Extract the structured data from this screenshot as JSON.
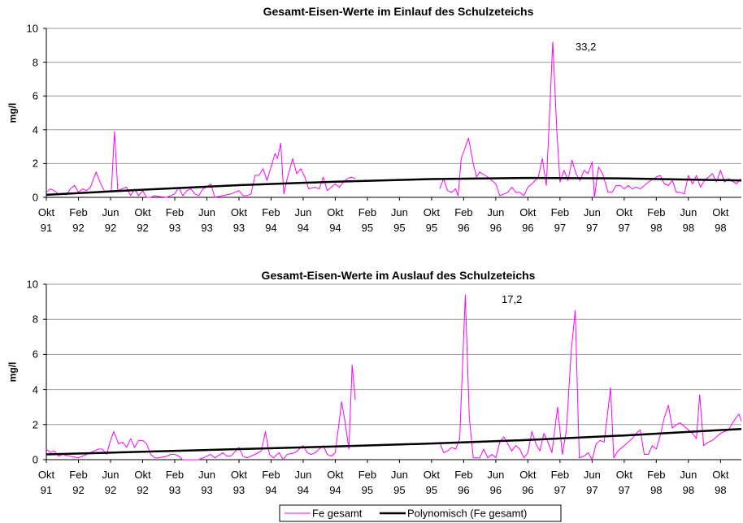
{
  "chart_data": [
    {
      "type": "line",
      "title": "Gesamt-Eisen-Werte im Einlauf des Schulzeteichs",
      "y_label": "mg/l",
      "annotation": "33,2",
      "xlim": [
        0,
        86.6
      ],
      "ylim": [
        0,
        10
      ],
      "yticks": [
        0,
        2,
        4,
        6,
        8,
        10
      ],
      "grid": true,
      "xticks": [
        {
          "value": 0,
          "label": "Okt 91"
        },
        {
          "value": 4,
          "label": "Feb 92"
        },
        {
          "value": 8,
          "label": "Jun 92"
        },
        {
          "value": 12,
          "label": "Okt 92"
        },
        {
          "value": 16,
          "label": "Feb 93"
        },
        {
          "value": 20,
          "label": "Jun 93"
        },
        {
          "value": 24,
          "label": "Okt 93"
        },
        {
          "value": 28,
          "label": "Feb 94"
        },
        {
          "value": 32,
          "label": "Jun 94"
        },
        {
          "value": 36,
          "label": "Okt 94"
        },
        {
          "value": 40,
          "label": "Feb 95"
        },
        {
          "value": 44,
          "label": "Jun 95"
        },
        {
          "value": 48,
          "label": "Okt 95"
        },
        {
          "value": 52,
          "label": "Feb 96"
        },
        {
          "value": 56,
          "label": "Jun 96"
        },
        {
          "value": 60,
          "label": "Okt 96"
        },
        {
          "value": 64,
          "label": "Feb 97"
        },
        {
          "value": 68,
          "label": "Jun 97"
        },
        {
          "value": 72,
          "label": "Okt 97"
        },
        {
          "value": 76,
          "label": "Feb 98"
        },
        {
          "value": 80,
          "label": "Jun 98"
        },
        {
          "value": 84,
          "label": "Okt 98"
        }
      ],
      "series": [
        {
          "name": "Fe gesamt",
          "color": "#ff00ff",
          "width": 1,
          "x": [
            0,
            0.5,
            1,
            1.5,
            2,
            2.5,
            3,
            3.5,
            4,
            4.5,
            5,
            5.5,
            6.2,
            6.7,
            7.2,
            7.7,
            8.1,
            8.5,
            8.9,
            9.4,
            10,
            10.5,
            11,
            11.5,
            12,
            12.5,
            13,
            13.5,
            14,
            15,
            15.5,
            16,
            16.5,
            17,
            17.5,
            18,
            18.5,
            19,
            19.5,
            20,
            20.5,
            21,
            22,
            23,
            23.5,
            24,
            24.5,
            25,
            25.5,
            26,
            26.5,
            27,
            27.5,
            28.5,
            28.8,
            29.2,
            29.6,
            30,
            30.7,
            31.2,
            31.7,
            32.2,
            32.7,
            33.5,
            34,
            34.5,
            35,
            35.5,
            36,
            36.5,
            37,
            37.5,
            38,
            38.5,
            44,
            49,
            49.5,
            50,
            50.5,
            51,
            51.3,
            51.7,
            52.6,
            53.2,
            53.6,
            54,
            55,
            56,
            56.5,
            57.5,
            58,
            58.5,
            59,
            59.5,
            60,
            60.5,
            61.3,
            61.8,
            62.3,
            63.1,
            63.6,
            64,
            64.5,
            65,
            65.5,
            66,
            66.5,
            67,
            67.5,
            68,
            68.3,
            68.8,
            69.3,
            70,
            70.5,
            71,
            71.5,
            72,
            72.5,
            73,
            73.5,
            74,
            75,
            76,
            76.5,
            77,
            77.5,
            78,
            78.5,
            79,
            79.5,
            80,
            80.5,
            81,
            81.5,
            82,
            83,
            83.5,
            84,
            84.5,
            85,
            86,
            86.5
          ],
          "values": [
            0.3,
            0.5,
            0.4,
            0.2,
            0.2,
            0.15,
            0.5,
            0.7,
            0.3,
            0.5,
            0.4,
            0.6,
            1.5,
            0.9,
            0.4,
            0.3,
            0.4,
            3.9,
            0.4,
            0.5,
            0.6,
            0.1,
            0.5,
            0.1,
            0.4,
            0,
            0,
            0.1,
            0.05,
            0,
            0.1,
            0.2,
            0.6,
            0.1,
            0.4,
            0.5,
            0.2,
            0.1,
            0.5,
            0.6,
            0.8,
            0,
            0.1,
            0.2,
            0.3,
            0.4,
            0.1,
            0.1,
            0.2,
            1.3,
            1.3,
            1.7,
            1.0,
            2.6,
            2.3,
            3.2,
            0.2,
            1.1,
            2.3,
            1.4,
            1.7,
            1.2,
            0.5,
            0.6,
            0.5,
            1.2,
            0.4,
            0.6,
            0.8,
            0.6,
            0.9,
            1.1,
            1.2,
            1.1,
            null,
            0.5,
            1.1,
            0.4,
            0.3,
            0.5,
            0.1,
            2.3,
            3.5,
            2.0,
            1.2,
            1.5,
            1.2,
            0.8,
            0.1,
            0.3,
            0.6,
            0.3,
            0.3,
            0.1,
            0.6,
            0.8,
            1.2,
            2.3,
            0.7,
            9.2,
            4,
            0.9,
            1.6,
            1.0,
            2.2,
            1.4,
            1.0,
            1.6,
            1.4,
            2.1,
            0,
            1.8,
            1.4,
            0.3,
            0.3,
            0.7,
            0.7,
            0.5,
            0.7,
            0.5,
            0.6,
            0.5,
            0.9,
            1.2,
            1.3,
            0.8,
            0.7,
            1.0,
            0.3,
            0.3,
            0.2,
            1.3,
            0.8,
            1.3,
            0.6,
            1.0,
            1.4,
            0.9,
            1.6,
            0.9,
            1.1,
            0.8,
            1.1
          ]
        },
        {
          "name": "Polynomisch (Fe gesamt)",
          "color": "#000000",
          "width": 2.5,
          "x": [
            0,
            12,
            24,
            36,
            48,
            60,
            72,
            86.6
          ],
          "values": [
            0.15,
            0.45,
            0.72,
            0.93,
            1.08,
            1.15,
            1.12,
            1.0
          ]
        }
      ]
    },
    {
      "type": "line",
      "title": "Gesamt-Eisen-Werte im Auslauf des Schulzeteichs",
      "y_label": "mg/l",
      "annotation": "17,2",
      "legend": "bottom",
      "xlim": [
        0,
        86.6
      ],
      "ylim": [
        0,
        10
      ],
      "yticks": [
        0,
        2,
        4,
        6,
        8,
        10
      ],
      "grid": true,
      "xticks": [
        {
          "value": 0,
          "label": "Okt 91"
        },
        {
          "value": 4,
          "label": "Feb 92"
        },
        {
          "value": 8,
          "label": "Jun 92"
        },
        {
          "value": 12,
          "label": "Okt 92"
        },
        {
          "value": 16,
          "label": "Feb 93"
        },
        {
          "value": 20,
          "label": "Jun 93"
        },
        {
          "value": 24,
          "label": "Okt 93"
        },
        {
          "value": 28,
          "label": "Feb 94"
        },
        {
          "value": 32,
          "label": "Jun 94"
        },
        {
          "value": 36,
          "label": "Okt 94"
        },
        {
          "value": 40,
          "label": "Feb 95"
        },
        {
          "value": 44,
          "label": "Jun 95"
        },
        {
          "value": 48,
          "label": "Okt 95"
        },
        {
          "value": 52,
          "label": "Feb 96"
        },
        {
          "value": 56,
          "label": "Jun 96"
        },
        {
          "value": 60,
          "label": "Okt 96"
        },
        {
          "value": 64,
          "label": "Feb 97"
        },
        {
          "value": 68,
          "label": "Jun 97"
        },
        {
          "value": 72,
          "label": "Okt 97"
        },
        {
          "value": 76,
          "label": "Feb 98"
        },
        {
          "value": 80,
          "label": "Jun 98"
        },
        {
          "value": 84,
          "label": "Okt 98"
        }
      ],
      "series": [
        {
          "name": "Fe gesamt",
          "color": "#ff00ff",
          "width": 1,
          "x": [
            0,
            0.5,
            1,
            1.5,
            2,
            3,
            4,
            5,
            6,
            6.5,
            7,
            7.5,
            8,
            8.4,
            9,
            9.5,
            10,
            10.5,
            11,
            11.5,
            12,
            12.5,
            13,
            13.5,
            14,
            15,
            15.5,
            16,
            16.5,
            17,
            18,
            19,
            20,
            20.5,
            21,
            22,
            22.5,
            23,
            24,
            24.5,
            25,
            26,
            26.8,
            27.3,
            27.8,
            28.3,
            29,
            29.5,
            30,
            31,
            31.5,
            32,
            32.5,
            33,
            33.5,
            34,
            34.5,
            35,
            35.5,
            36,
            36.8,
            37.2,
            37.7,
            38.1,
            38.5,
            44,
            49,
            49.5,
            50,
            50.5,
            51,
            51.5,
            52.2,
            52.7,
            53.2,
            54,
            54.5,
            55,
            55.5,
            56,
            56.5,
            57,
            57.5,
            58,
            58.5,
            59,
            59.5,
            60,
            60.5,
            61,
            61.5,
            62,
            62.5,
            63,
            63.7,
            64.3,
            64.8,
            65.4,
            65.9,
            66.4,
            67,
            67.5,
            68,
            68.5,
            69,
            69.5,
            70.3,
            70.7,
            71.2,
            72,
            72.5,
            73,
            73.5,
            74,
            74.5,
            75,
            75.5,
            76,
            76.5,
            77,
            77.5,
            78,
            78.5,
            79,
            79.5,
            80,
            80.5,
            81,
            81.4,
            81.9,
            82.5,
            83,
            83.5,
            84,
            85,
            85.8,
            86.3,
            86.6
          ],
          "values": [
            0.6,
            0.4,
            0.5,
            0.2,
            0.3,
            0.2,
            0.1,
            0.3,
            0.5,
            0.6,
            0.6,
            0.3,
            1.1,
            1.6,
            0.9,
            1.0,
            0.7,
            1.2,
            0.7,
            1.1,
            1.1,
            0.9,
            0.3,
            0.1,
            0.1,
            0.2,
            0.3,
            0.3,
            0.2,
            0,
            0,
            0,
            0.2,
            0.3,
            0.1,
            0.4,
            0.2,
            0.2,
            0.7,
            0.2,
            0.1,
            0.3,
            0.5,
            1.6,
            0.3,
            0.1,
            0.4,
            0,
            0.3,
            0.4,
            0.6,
            0.8,
            0.4,
            0.3,
            0.4,
            0.6,
            0.8,
            0.3,
            0.2,
            0.4,
            3.3,
            2.2,
            0.6,
            5.4,
            3.4,
            null,
            1.0,
            0.4,
            0.5,
            0.7,
            0.6,
            1.2,
            9.4,
            2.4,
            0.1,
            0.1,
            0.6,
            0.1,
            0.3,
            0.1,
            1.0,
            1.3,
            0.9,
            0.5,
            0.8,
            0.6,
            0.1,
            0.4,
            1.6,
            0.9,
            0.5,
            1.5,
            1.0,
            0.4,
            3.0,
            0.3,
            1.7,
            6.2,
            8.5,
            0.1,
            0.2,
            0.4,
            0,
            0.9,
            1.1,
            1.0,
            4.1,
            0.1,
            0.5,
            0.8,
            1.0,
            1.2,
            1.5,
            1.7,
            0.3,
            0.3,
            0.8,
            0.6,
            1.4,
            2.4,
            3.1,
            1.8,
            2.0,
            2.1,
            1.9,
            1.7,
            1.5,
            1.2,
            3.7,
            0.8,
            1.0,
            1.1,
            1.3,
            1.5,
            1.7,
            2.3,
            2.6,
            2.2
          ]
        },
        {
          "name": "Polynomisch (Fe gesamt)",
          "color": "#000000",
          "width": 2.5,
          "x": [
            0,
            12,
            24,
            36,
            48,
            60,
            72,
            86.6
          ],
          "values": [
            0.3,
            0.45,
            0.6,
            0.75,
            0.92,
            1.12,
            1.38,
            1.75
          ]
        }
      ]
    }
  ]
}
